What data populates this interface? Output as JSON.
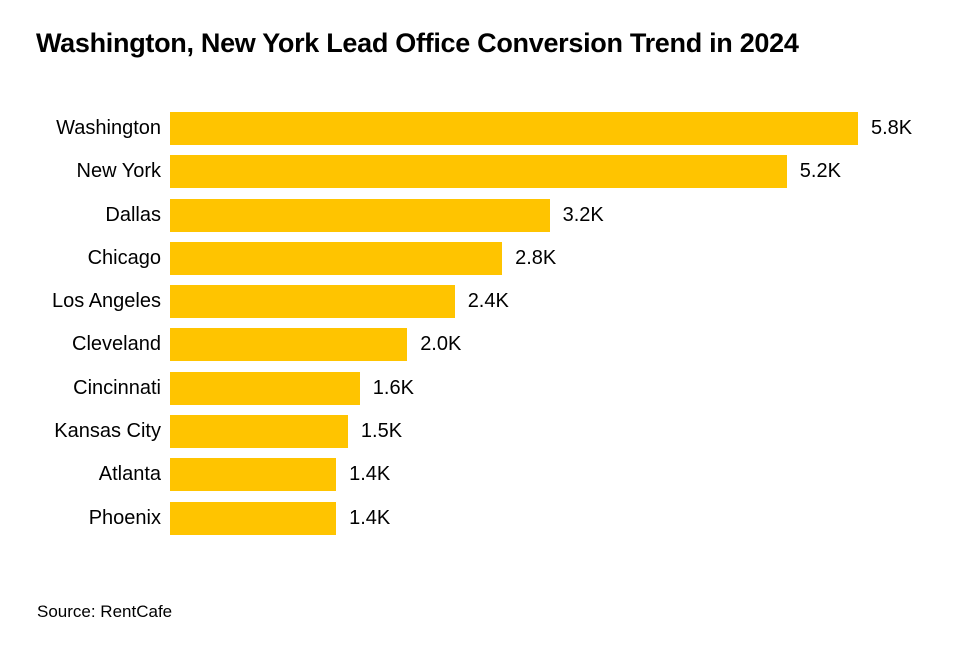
{
  "chart_data": {
    "type": "bar",
    "orientation": "horizontal",
    "title": "Washington, New York Lead Office Conversion Trend in 2024",
    "categories": [
      "Washington",
      "New York",
      "Dallas",
      "Chicago",
      "Los Angeles",
      "Cleveland",
      "Cincinnati",
      "Kansas City",
      "Atlanta",
      "Phoenix"
    ],
    "values": [
      5800,
      5200,
      3200,
      2800,
      2400,
      2000,
      1600,
      1500,
      1400,
      1400
    ],
    "value_labels": [
      "5.8K",
      "5.2K",
      "3.2K",
      "2.8K",
      "2.4K",
      "2.0K",
      "1.6K",
      "1.5K",
      "1.4K",
      "1.4K"
    ],
    "xlim": [
      0,
      5800
    ],
    "grid": "off",
    "legend": "none",
    "bar_color": "#FFC400",
    "text_color": "#000000",
    "background_color": "#FFFFFF",
    "source": "Source: RentCafe"
  }
}
